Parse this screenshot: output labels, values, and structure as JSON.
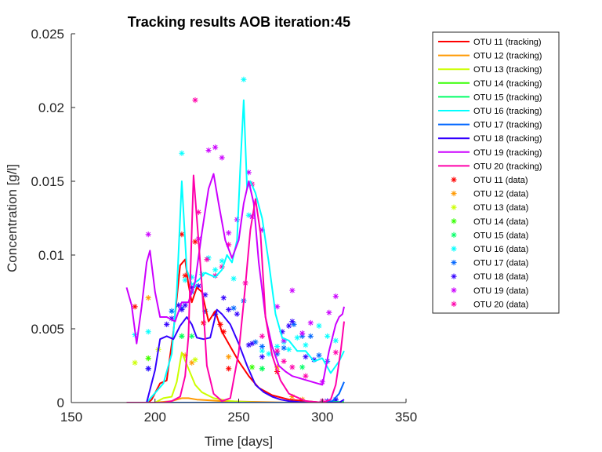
{
  "chart_data": {
    "type": "line",
    "title": "Tracking results AOB iteration:45",
    "xlabel": "Time [days]",
    "ylabel": "Concentration [g/l]",
    "xlim": [
      150,
      350
    ],
    "ylim": [
      0,
      0.025
    ],
    "xticks": [
      150,
      200,
      250,
      300,
      350
    ],
    "xtick_labels": [
      "150",
      "200",
      "250",
      "300",
      "350"
    ],
    "yticks": [
      0,
      0.005,
      0.01,
      0.015,
      0.02,
      0.025
    ],
    "ytick_labels": [
      "0",
      "0.005",
      "0.01",
      "0.015",
      "0.02",
      "0.025"
    ],
    "grid": false,
    "legend_position": "outside-right",
    "series": [
      {
        "name": "OTU 11 (tracking)",
        "color": "#ff0000",
        "kind": "line",
        "x": [
          183,
          196,
          198,
          203,
          207,
          211,
          215,
          218,
          220,
          222,
          225,
          228,
          232,
          236,
          240,
          245,
          250,
          256,
          262,
          270,
          280,
          300,
          313
        ],
        "y": [
          0,
          0,
          0.0002,
          0.0013,
          0.0015,
          0.0048,
          0.0093,
          0.0097,
          0.008,
          0.0068,
          0.0078,
          0.0075,
          0.0055,
          0.0062,
          0.0048,
          0.0038,
          0.0028,
          0.0018,
          0.001,
          0.0005,
          0.0002,
          0,
          0
        ]
      },
      {
        "name": "OTU 12 (tracking)",
        "color": "#ff9900",
        "kind": "line",
        "x": [
          183,
          200,
          210,
          216,
          220,
          225,
          240,
          260,
          280,
          313
        ],
        "y": [
          0,
          0,
          0.0001,
          0.0003,
          0.0003,
          0.0002,
          0.0001,
          5e-05,
          0,
          0
        ]
      },
      {
        "name": "OTU 13 (tracking)",
        "color": "#ccff00",
        "kind": "line",
        "x": [
          183,
          200,
          205,
          210,
          213,
          216,
          220,
          224,
          228,
          235,
          245,
          260,
          280,
          313
        ],
        "y": [
          0,
          0,
          0.0003,
          0.0004,
          0.0014,
          0.0034,
          0.0023,
          0.0012,
          0.0007,
          0.0003,
          0.0001,
          0,
          0,
          0
        ]
      },
      {
        "name": "OTU 14 (tracking)",
        "color": "#33ff00",
        "kind": "line",
        "x": [
          183,
          230,
          280,
          313
        ],
        "y": [
          0,
          0,
          0,
          0
        ]
      },
      {
        "name": "OTU 15 (tracking)",
        "color": "#00ff66",
        "kind": "line",
        "x": [
          183,
          230,
          280,
          313
        ],
        "y": [
          0,
          0,
          0,
          5e-05
        ]
      },
      {
        "name": "OTU 16 (tracking)",
        "color": "#00ffff",
        "kind": "line",
        "x": [
          185,
          195,
          205,
          210,
          213,
          216,
          219,
          222,
          226,
          230,
          236,
          240,
          243,
          246,
          249,
          251,
          253,
          255,
          257,
          260,
          264,
          268,
          272,
          276,
          280,
          285,
          290,
          295,
          300,
          305,
          310,
          313
        ],
        "y": [
          0,
          0,
          0.0013,
          0.0033,
          0.0075,
          0.015,
          0.009,
          0.008,
          0.0083,
          0.0088,
          0.0085,
          0.009,
          0.01,
          0.0095,
          0.011,
          0.016,
          0.0205,
          0.0145,
          0.015,
          0.0142,
          0.0125,
          0.0095,
          0.006,
          0.0044,
          0.0042,
          0.0035,
          0.0035,
          0.0028,
          0.003,
          0.002,
          0.0028,
          0.0035
        ]
      },
      {
        "name": "OTU 17 (tracking)",
        "color": "#0066ff",
        "kind": "line",
        "x": [
          183,
          230,
          300,
          306,
          310,
          313
        ],
        "y": [
          0,
          0,
          0,
          0.0001,
          0.0006,
          0.0014
        ]
      },
      {
        "name": "OTU 18 (tracking)",
        "color": "#3300ff",
        "kind": "line",
        "x": [
          183,
          195,
          200,
          203,
          207,
          211,
          215,
          219,
          222,
          225,
          229,
          233,
          237,
          240,
          245,
          250,
          255,
          260,
          265,
          270,
          275,
          280,
          290,
          300,
          310,
          313
        ],
        "y": [
          0,
          0,
          0.0022,
          0.0043,
          0.0045,
          0.0043,
          0.0052,
          0.0058,
          0.0053,
          0.0044,
          0.0043,
          0.0044,
          0.0063,
          0.006,
          0.0053,
          0.004,
          0.0025,
          0.0012,
          0.0007,
          0.0004,
          0.0002,
          0.0001,
          0,
          0,
          0,
          0.0002
        ]
      },
      {
        "name": "OTU 19 (tracking)",
        "color": "#cc00ff",
        "kind": "line",
        "x": [
          183,
          186,
          189,
          192,
          195,
          197,
          200,
          203,
          207,
          212,
          216,
          220,
          224,
          228,
          232,
          235,
          238,
          242,
          246,
          250,
          253,
          256,
          259,
          262,
          266,
          270,
          274,
          278,
          282,
          288,
          294,
          300,
          304,
          308,
          310,
          312,
          313
        ],
        "y": [
          0.0078,
          0.0066,
          0.004,
          0.0065,
          0.0095,
          0.0103,
          0.0075,
          0.0058,
          0.0058,
          0.0055,
          0.0068,
          0.0068,
          0.0082,
          0.0115,
          0.0145,
          0.0155,
          0.0135,
          0.011,
          0.0098,
          0.011,
          0.0135,
          0.015,
          0.0135,
          0.0095,
          0.0058,
          0.0038,
          0.0025,
          0.0021,
          0.0018,
          0.0016,
          0.0014,
          0.0012,
          0.0035,
          0.0053,
          0.0058,
          0.006,
          0.0065
        ]
      },
      {
        "name": "OTU 20 (tracking)",
        "color": "#ff00aa",
        "kind": "line",
        "x": [
          183,
          205,
          210,
          215,
          218,
          220,
          223,
          225,
          228,
          231,
          235,
          240,
          245,
          250,
          254,
          257,
          260,
          263,
          266,
          270,
          275,
          280,
          290,
          300,
          305,
          308,
          311,
          313
        ],
        "y": [
          0,
          0,
          0.0001,
          0.0004,
          0.0018,
          0.0045,
          0.0154,
          0.0125,
          0.008,
          0.0025,
          0.0006,
          0.0001,
          0.0003,
          0.0034,
          0.0079,
          0.0117,
          0.0138,
          0.0115,
          0.0058,
          0.0032,
          0.0015,
          0.0006,
          0.0001,
          0,
          0.0002,
          0.0012,
          0.0035,
          0.0055
        ]
      },
      {
        "name": "OTU 11 (data)",
        "color": "#ff0000",
        "kind": "marker",
        "x": [
          188,
          216,
          218,
          224,
          229,
          239,
          241,
          244,
          273
        ],
        "y": [
          0.0065,
          0.0114,
          0.0086,
          0.0109,
          0.0054,
          0.0053,
          0.0048,
          0.0023,
          0.0021
        ]
      },
      {
        "name": "OTU 12 (data)",
        "color": "#ff9900",
        "kind": "marker",
        "x": [
          196,
          218,
          222,
          244,
          273,
          282,
          288
        ],
        "y": [
          0.0071,
          0.0032,
          0.0027,
          0.0031,
          0.0024,
          0.0004,
          0.0002
        ]
      },
      {
        "name": "OTU 13 (data)",
        "color": "#ccff00",
        "kind": "marker",
        "x": [
          188,
          196,
          202,
          216,
          224
        ],
        "y": [
          0.0027,
          0.003,
          0.0036,
          0.0045,
          0.0029
        ]
      },
      {
        "name": "OTU 14 (data)",
        "color": "#33ff00",
        "kind": "marker",
        "x": [
          196,
          216,
          258,
          264
        ],
        "y": [
          0.003,
          0.0045,
          0.0024,
          0.0023
        ]
      },
      {
        "name": "OTU 15 (data)",
        "color": "#00ff66",
        "kind": "marker",
        "x": [
          216,
          222,
          264,
          288
        ],
        "y": [
          0.0045,
          0.0045,
          0.0023,
          0.0024
        ]
      },
      {
        "name": "OTU 16 (data)",
        "color": "#00ffff",
        "kind": "marker",
        "x": [
          188,
          196,
          210,
          216,
          218,
          222,
          224,
          228,
          232,
          236,
          240,
          247,
          253,
          256,
          264,
          268,
          273,
          277,
          280,
          285,
          290,
          298,
          303,
          308
        ],
        "y": [
          0.0046,
          0.0048,
          0.0062,
          0.0169,
          0.0083,
          0.0085,
          0.0079,
          0.0087,
          0.0098,
          0.009,
          0.0096,
          0.0084,
          0.0219,
          0.0127,
          0.0035,
          0.0033,
          0.0038,
          0.0041,
          0.0036,
          0.0044,
          0.0039,
          0.0052,
          0.0045,
          0.0042
        ]
      },
      {
        "name": "OTU 17 (data)",
        "color": "#0066ff",
        "kind": "marker",
        "x": [
          196,
          210,
          216,
          222,
          230,
          236,
          247,
          253,
          260,
          264,
          273,
          277,
          283,
          288,
          293,
          298,
          303,
          308
        ],
        "y": [
          0.0023,
          0.0062,
          0.0064,
          0.0075,
          0.0062,
          0.006,
          0.0064,
          0.0069,
          0.0041,
          0.0038,
          0.0033,
          0.0037,
          0.0053,
          0.0045,
          0.0045,
          0.0032,
          0.0028,
          0.0001
        ]
      },
      {
        "name": "OTU 18 (data)",
        "color": "#3300ff",
        "kind": "marker",
        "x": [
          196,
          207,
          210,
          214,
          216,
          218,
          222,
          226,
          230,
          236,
          241,
          244,
          249,
          256,
          258,
          264,
          276,
          280,
          282,
          290,
          295,
          303,
          308
        ],
        "y": [
          0.0023,
          0.0053,
          0.0057,
          0.0066,
          0.0063,
          0.0066,
          0.0078,
          0.0079,
          0.0073,
          0.006,
          0.0071,
          0.0063,
          0.006,
          0.0039,
          0.004,
          0.0031,
          0.0048,
          0.0052,
          0.0055,
          0.0031,
          0.0029,
          0.0001,
          0.0002
        ]
      },
      {
        "name": "OTU 19 (data)",
        "color": "#cc00ff",
        "kind": "marker",
        "x": [
          196,
          226,
          232,
          236,
          240,
          244,
          249,
          256,
          258,
          264,
          273,
          277,
          282,
          288,
          293,
          300,
          304,
          308
        ],
        "y": [
          0.0114,
          0.0111,
          0.0171,
          0.0173,
          0.0166,
          0.0115,
          0.0124,
          0.0156,
          0.0126,
          0.0117,
          0.0065,
          0.0042,
          0.0076,
          0.0047,
          0.0054,
          0.0014,
          0.0061,
          0.0072
        ]
      },
      {
        "name": "OTU 20 (data)",
        "color": "#ff00aa",
        "kind": "marker",
        "x": [
          224,
          226,
          231,
          236,
          240,
          244,
          254,
          258,
          264,
          273,
          277,
          282,
          290,
          300,
          308
        ],
        "y": [
          0.0205,
          0.0129,
          0.0097,
          0.0086,
          0.0092,
          0.0107,
          0.0081,
          0.0148,
          0.0045,
          0.0035,
          0.0028,
          0.0024,
          0.0018,
          0.0001,
          0.0034
        ]
      }
    ]
  }
}
